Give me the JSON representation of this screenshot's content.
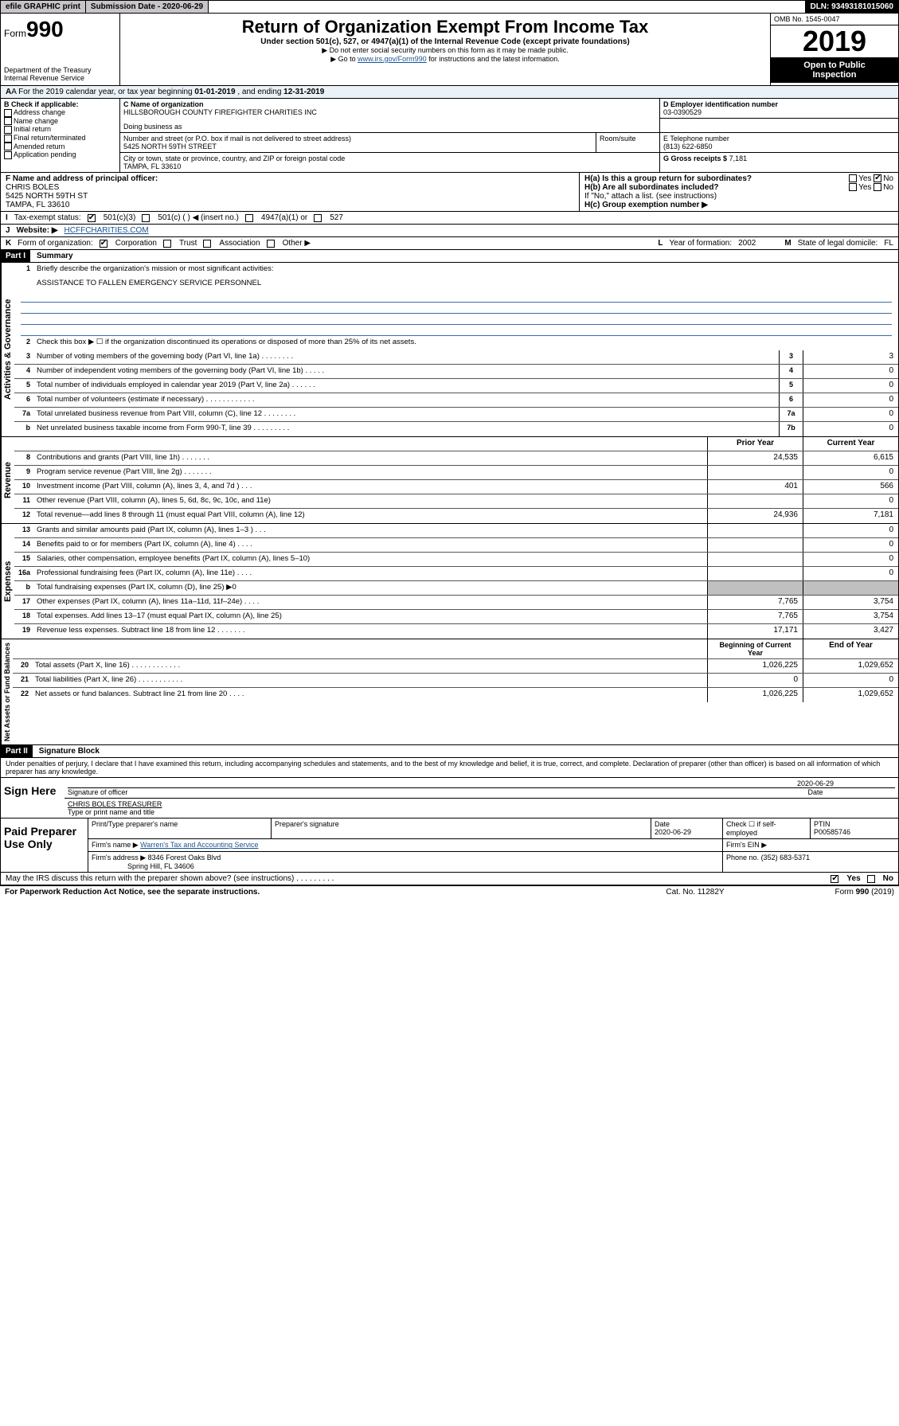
{
  "topbar": {
    "efile": "efile GRAPHIC print",
    "subdate_label": "Submission Date - 2020-06-29",
    "dln": "DLN: 93493181015060"
  },
  "header": {
    "form_prefix": "Form",
    "form_number": "990",
    "dept": "Department of the Treasury",
    "irs": "Internal Revenue Service",
    "title": "Return of Organization Exempt From Income Tax",
    "subtitle": "Under section 501(c), 527, or 4947(a)(1) of the Internal Revenue Code (except private foundations)",
    "note1": "▶ Do not enter social security numbers on this form as it may be made public.",
    "note2_pre": "▶ Go to ",
    "note2_link": "www.irs.gov/Form990",
    "note2_post": " for instructions and the latest information.",
    "omb": "OMB No. 1545-0047",
    "year": "2019",
    "inspect1": "Open to Public",
    "inspect2": "Inspection"
  },
  "period": {
    "text_pre": "A For the 2019 calendar year, or tax year beginning ",
    "begin": "01-01-2019",
    "mid": " , and ending ",
    "end": "12-31-2019"
  },
  "section_b": {
    "label": "B Check if applicable:",
    "opts": [
      "Address change",
      "Name change",
      "Initial return",
      "Final return/terminated",
      "Amended return",
      "Application pending"
    ]
  },
  "section_c": {
    "name_label": "C Name of organization",
    "name": "HILLSBOROUGH COUNTY FIREFIGHTER CHARITIES INC",
    "dba_label": "Doing business as",
    "addr_label": "Number and street (or P.O. box if mail is not delivered to street address)",
    "room_label": "Room/suite",
    "addr": "5425 NORTH 59TH STREET",
    "city_label": "City or town, state or province, country, and ZIP or foreign postal code",
    "city": "TAMPA, FL  33610"
  },
  "section_d": {
    "label": "D Employer identification number",
    "val": "03-0390529"
  },
  "section_e": {
    "label": "E Telephone number",
    "val": "(813) 622-6850"
  },
  "section_g": {
    "label": "G Gross receipts $",
    "val": "7,181"
  },
  "section_f": {
    "label": "F  Name and address of principal officer:",
    "name": "CHRIS BOLES",
    "addr1": "5425 NORTH 59TH ST",
    "addr2": "TAMPA, FL  33610"
  },
  "section_h": {
    "ha": "H(a)  Is this a group return for subordinates?",
    "hb": "H(b)  Are all subordinates included?",
    "hb_note": "If \"No,\" attach a list. (see instructions)",
    "hc": "H(c)  Group exemption number ▶",
    "yes": "Yes",
    "no": "No"
  },
  "line_i": {
    "label": "I",
    "text": "Tax-exempt status:",
    "opts": [
      "501(c)(3)",
      "501(c) (  ) ◀ (insert no.)",
      "4947(a)(1) or",
      "527"
    ]
  },
  "line_j": {
    "label": "J",
    "text": "Website: ▶",
    "val": "HCFFCHARITIES.COM"
  },
  "line_k": {
    "label": "K",
    "text": "Form of organization:",
    "opts": [
      "Corporation",
      "Trust",
      "Association",
      "Other ▶"
    ]
  },
  "line_l": {
    "label": "L",
    "text": "Year of formation:",
    "val": "2002"
  },
  "line_m": {
    "label": "M",
    "text": "State of legal domicile:",
    "val": "FL"
  },
  "part1": {
    "hdr": "Part I",
    "title": "Summary"
  },
  "summary": {
    "q1": "Briefly describe the organization's mission or most significant activities:",
    "q1_ans": "ASSISTANCE TO FALLEN EMERGENCY SERVICE PERSONNEL",
    "q2": "Check this box ▶ ☐  if the organization discontinued its operations or disposed of more than 25% of its net assets.",
    "rows_gov": [
      {
        "n": "3",
        "t": "Number of voting members of the governing body (Part VI, line 1a)   .    .    .    .    .    .    .    .",
        "c": "3",
        "v": "3"
      },
      {
        "n": "4",
        "t": "Number of independent voting members of the governing body (Part VI, line 1b)   .    .    .    .    .",
        "c": "4",
        "v": "0"
      },
      {
        "n": "5",
        "t": "Total number of individuals employed in calendar year 2019 (Part V, line 2a)   .    .    .    .    .    .",
        "c": "5",
        "v": "0"
      },
      {
        "n": "6",
        "t": "Total number of volunteers (estimate if necessary)   .    .    .    .    .    .    .    .    .    .    .    .",
        "c": "6",
        "v": "0"
      },
      {
        "n": "7a",
        "t": "Total unrelated business revenue from Part VIII, column (C), line 12   .    .    .    .    .    .    .    .",
        "c": "7a",
        "v": "0"
      },
      {
        "n": "b",
        "t": "Net unrelated business taxable income from Form 990-T, line 39   .    .    .    .    .    .    .    .    .",
        "c": "7b",
        "v": "0"
      }
    ],
    "hdr_prior": "Prior Year",
    "hdr_current": "Current Year",
    "rows_rev": [
      {
        "n": "8",
        "t": "Contributions and grants (Part VIII, line 1h)   .    .    .    .    .    .    .",
        "p": "24,535",
        "c": "6,615"
      },
      {
        "n": "9",
        "t": "Program service revenue (Part VIII, line 2g)   .    .    .    .    .    .    .",
        "p": "",
        "c": "0"
      },
      {
        "n": "10",
        "t": "Investment income (Part VIII, column (A), lines 3, 4, and 7d )   .    .    .",
        "p": "401",
        "c": "566"
      },
      {
        "n": "11",
        "t": "Other revenue (Part VIII, column (A), lines 5, 6d, 8c, 9c, 10c, and 11e)",
        "p": "",
        "c": "0"
      },
      {
        "n": "12",
        "t": "Total revenue—add lines 8 through 11 (must equal Part VIII, column (A), line 12)",
        "p": "24,936",
        "c": "7,181"
      }
    ],
    "rows_exp": [
      {
        "n": "13",
        "t": "Grants and similar amounts paid (Part IX, column (A), lines 1–3 )   .    .    .",
        "p": "",
        "c": "0"
      },
      {
        "n": "14",
        "t": "Benefits paid to or for members (Part IX, column (A), line 4)   .    .    .    .",
        "p": "",
        "c": "0"
      },
      {
        "n": "15",
        "t": "Salaries, other compensation, employee benefits (Part IX, column (A), lines 5–10)",
        "p": "",
        "c": "0"
      },
      {
        "n": "16a",
        "t": "Professional fundraising fees (Part IX, column (A), line 11e)   .    .    .    .",
        "p": "",
        "c": "0"
      },
      {
        "n": "b",
        "t": "Total fundraising expenses (Part IX, column (D), line 25) ▶0",
        "p": "GREY",
        "c": "GREY"
      },
      {
        "n": "17",
        "t": "Other expenses (Part IX, column (A), lines 11a–11d, 11f–24e)   .    .    .    .",
        "p": "7,765",
        "c": "3,754"
      },
      {
        "n": "18",
        "t": "Total expenses. Add lines 13–17 (must equal Part IX, column (A), line 25)",
        "p": "7,765",
        "c": "3,754"
      },
      {
        "n": "19",
        "t": "Revenue less expenses. Subtract line 18 from line 12   .    .    .    .    .    .    .",
        "p": "17,171",
        "c": "3,427"
      }
    ],
    "hdr_begin": "Beginning of Current Year",
    "hdr_end": "End of Year",
    "rows_net": [
      {
        "n": "20",
        "t": "Total assets (Part X, line 16)   .    .    .    .    .    .    .    .    .    .    .    .",
        "p": "1,026,225",
        "c": "1,029,652"
      },
      {
        "n": "21",
        "t": "Total liabilities (Part X, line 26)   .    .    .    .    .    .    .    .    .    .    .",
        "p": "0",
        "c": "0"
      },
      {
        "n": "22",
        "t": "Net assets or fund balances. Subtract line 21 from line 20   .    .    .    .",
        "p": "1,026,225",
        "c": "1,029,652"
      }
    ],
    "vlabels": [
      "Activities & Governance",
      "Revenue",
      "Expenses",
      "Net Assets or Fund Balances"
    ]
  },
  "part2": {
    "hdr": "Part II",
    "title": "Signature Block"
  },
  "perjury": "Under penalties of perjury, I declare that I have examined this return, including accompanying schedules and statements, and to the best of my knowledge and belief, it is true, correct, and complete. Declaration of preparer (other than officer) is based on all information of which preparer has any knowledge.",
  "sign": {
    "here": "Sign Here",
    "sig_label": "Signature of officer",
    "date": "2020-06-29",
    "date_label": "Date",
    "name": "CHRIS BOLES  TREASURER",
    "name_label": "Type or print name and title"
  },
  "paid": {
    "label": "Paid Preparer Use Only",
    "h1": "Print/Type preparer's name",
    "h2": "Preparer's signature",
    "h3": "Date",
    "h4": "Check ☐ if self-employed",
    "h5": "PTIN",
    "date": "2020-06-29",
    "ptin": "P00585746",
    "firm_label": "Firm's name    ▶",
    "firm": "Warren's Tax and Accounting Service",
    "ein_label": "Firm's EIN ▶",
    "addr_label": "Firm's address ▶",
    "addr1": "8346 Forest Oaks Blvd",
    "addr2": "Spring Hill, FL  34606",
    "phone_label": "Phone no.",
    "phone": "(352) 683-5371"
  },
  "discuss": {
    "text": "May the IRS discuss this return with the preparer shown above? (see instructions)   .    .    .    .    .    .    .    .    .",
    "yes": "Yes",
    "no": "No"
  },
  "footer": {
    "left": "For Paperwork Reduction Act Notice, see the separate instructions.",
    "mid": "Cat. No. 11282Y",
    "right": "Form 990 (2019)"
  }
}
